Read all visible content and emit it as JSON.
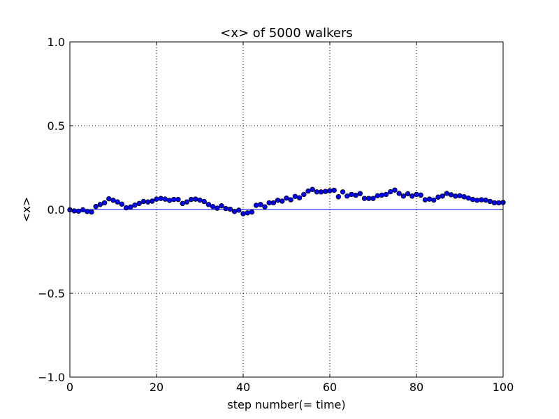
{
  "chart_data": {
    "type": "scatter",
    "title": "<x> of 5000 walkers",
    "xlabel": "step number(= time)",
    "ylabel": "<x>",
    "xlim": [
      0,
      100
    ],
    "ylim": [
      -1.0,
      1.0
    ],
    "x_ticks": [
      0,
      20,
      40,
      60,
      80,
      100
    ],
    "y_ticks": [
      -1.0,
      -0.5,
      0.0,
      0.5,
      1.0
    ],
    "x_tick_labels": [
      "0",
      "20",
      "40",
      "60",
      "80",
      "100"
    ],
    "y_tick_labels": [
      "−1.0",
      "−0.5",
      "0.0",
      "0.5",
      "1.0"
    ],
    "grid": true,
    "reference_line_y": 0,
    "colors": {
      "marker": "#0000ff",
      "marker_edge": "#000000",
      "line": "#0000ff",
      "grid": "#000000"
    },
    "series": [
      {
        "x": [
          0,
          1,
          2,
          3,
          4,
          5,
          6,
          7,
          8,
          9,
          10,
          11,
          12,
          13,
          14,
          15,
          16,
          17,
          18,
          19,
          20,
          21,
          22,
          23,
          24,
          25,
          26,
          27,
          28,
          29,
          30,
          31,
          32,
          33,
          34,
          35,
          36,
          37,
          38,
          39,
          40,
          41,
          42,
          43,
          44,
          45,
          46,
          47,
          48,
          49,
          50,
          51,
          52,
          53,
          54,
          55,
          56,
          57,
          58,
          59,
          60,
          61,
          62,
          63,
          64,
          65,
          66,
          67,
          68,
          69,
          70,
          71,
          72,
          73,
          74,
          75,
          76,
          77,
          78,
          79,
          80,
          81,
          82,
          83,
          84,
          85,
          86,
          87,
          88,
          89,
          90,
          91,
          92,
          93,
          94,
          95,
          96,
          97,
          98,
          99,
          100
        ],
        "y": [
          -0.002,
          -0.008,
          -0.01,
          -0.002,
          -0.012,
          -0.015,
          0.018,
          0.03,
          0.04,
          0.064,
          0.055,
          0.045,
          0.032,
          0.01,
          0.015,
          0.026,
          0.036,
          0.048,
          0.045,
          0.05,
          0.062,
          0.066,
          0.062,
          0.054,
          0.06,
          0.06,
          0.036,
          0.045,
          0.06,
          0.062,
          0.056,
          0.048,
          0.03,
          0.018,
          0.008,
          0.022,
          0.006,
          0.002,
          -0.012,
          -0.004,
          -0.025,
          -0.02,
          -0.015,
          0.025,
          0.03,
          0.016,
          0.04,
          0.04,
          0.055,
          0.05,
          0.068,
          0.058,
          0.078,
          0.07,
          0.09,
          0.11,
          0.12,
          0.105,
          0.105,
          0.108,
          0.112,
          0.115,
          0.076,
          0.105,
          0.08,
          0.09,
          0.085,
          0.095,
          0.066,
          0.066,
          0.066,
          0.082,
          0.086,
          0.09,
          0.106,
          0.116,
          0.096,
          0.08,
          0.094,
          0.08,
          0.09,
          0.086,
          0.058,
          0.062,
          0.056,
          0.074,
          0.08,
          0.096,
          0.088,
          0.08,
          0.082,
          0.076,
          0.068,
          0.06,
          0.055,
          0.058,
          0.056,
          0.048,
          0.04,
          0.04,
          0.042
        ]
      }
    ]
  }
}
